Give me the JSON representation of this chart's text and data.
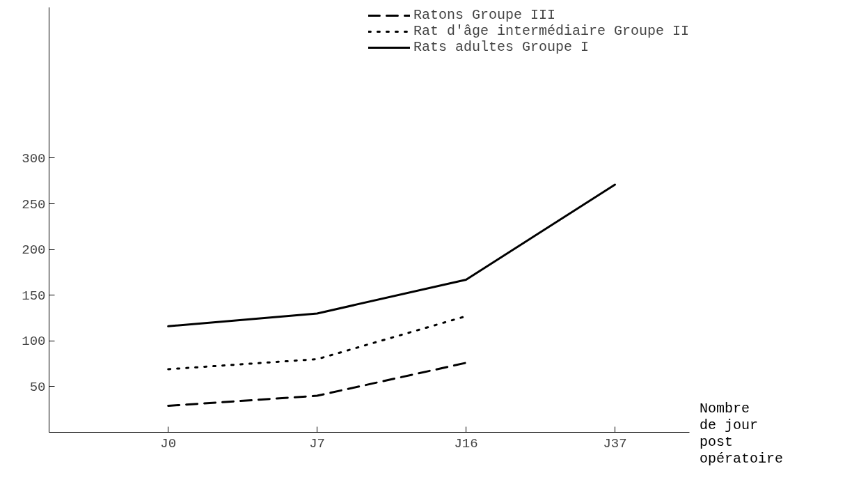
{
  "chart_data": {
    "type": "line",
    "xlabel": "Nombre\nde jour\npost\nopératoire",
    "categories": [
      "J0",
      "J7",
      "J16",
      "J37"
    ],
    "ylim": [
      0,
      465
    ],
    "yticks": [
      50,
      100,
      150,
      200,
      250,
      300
    ],
    "grid": false,
    "legend": "top right",
    "series": [
      {
        "name": "Ratons Groupe III",
        "color": "#000000",
        "line_style": "dashed",
        "values": [
          29,
          40,
          76,
          null
        ]
      },
      {
        "name": "Rat d'âge intermédiaire Groupe II",
        "color": "#000000",
        "line_style": "dotted",
        "values": [
          69,
          80,
          127,
          null
        ]
      },
      {
        "name": "Rats adultes Groupe I",
        "color": "#000000",
        "line_style": "solid",
        "values": [
          116,
          130,
          167,
          271
        ]
      }
    ]
  }
}
